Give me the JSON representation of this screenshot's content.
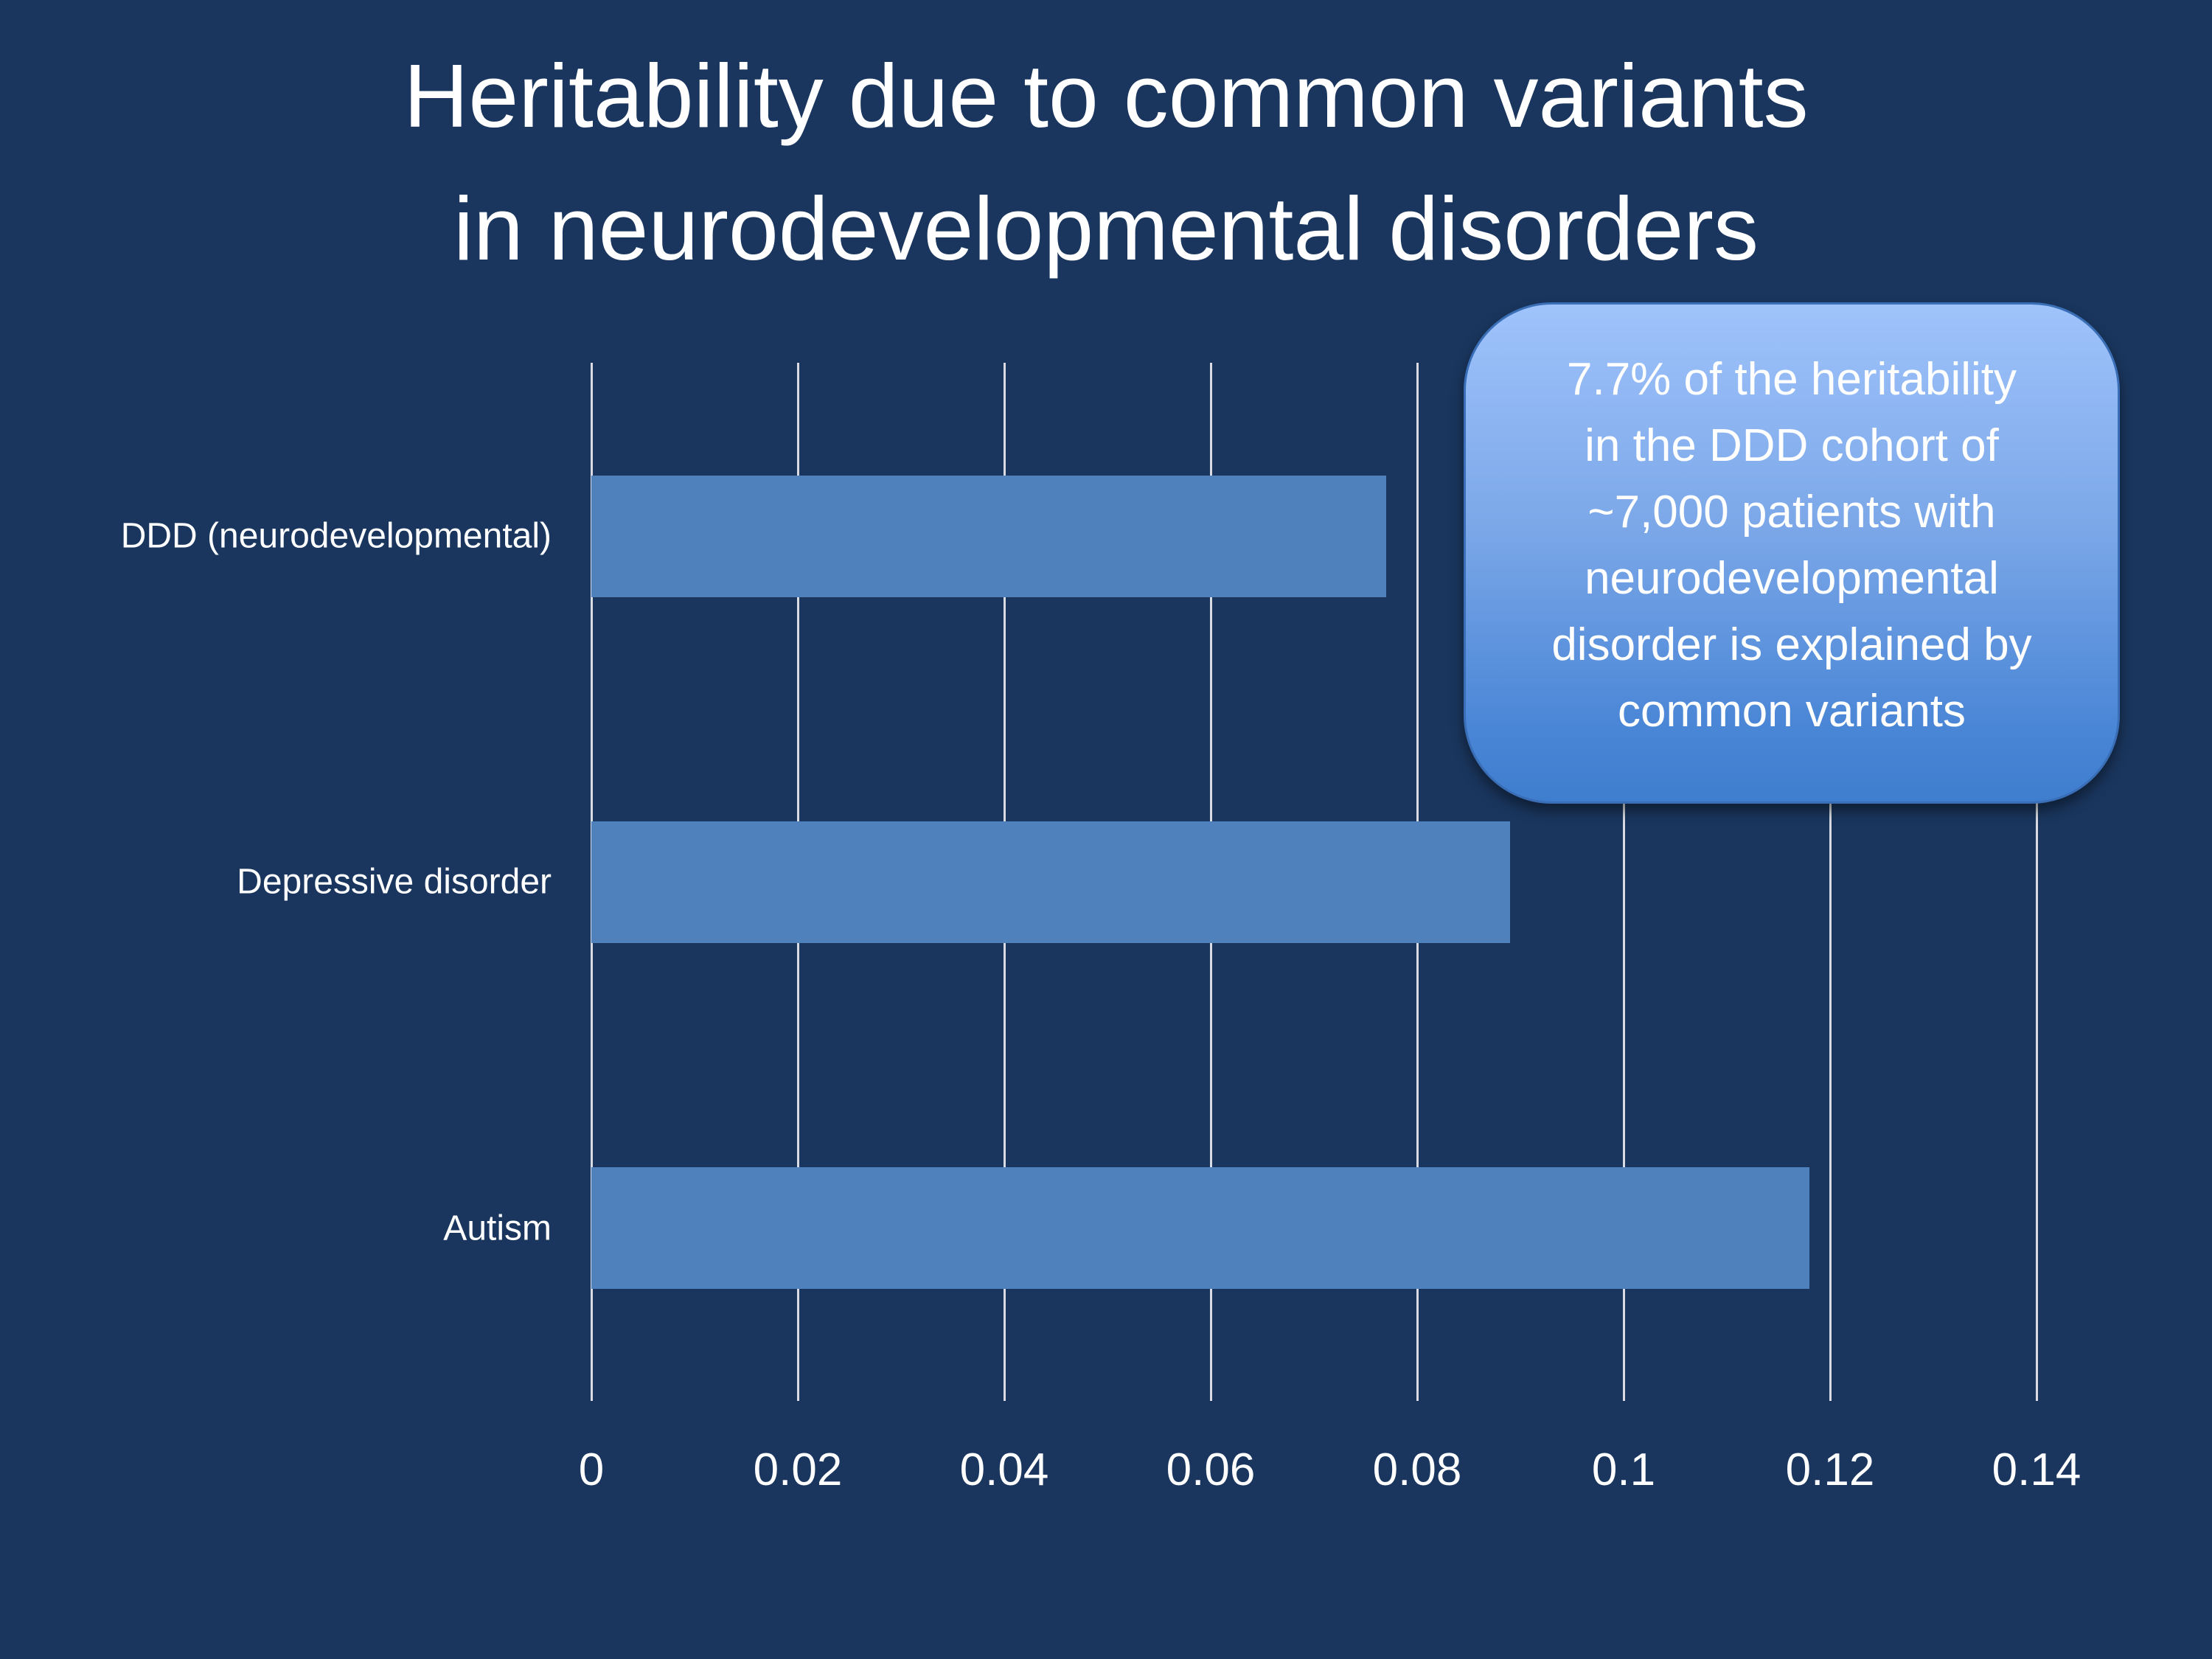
{
  "slide": {
    "background_color": "#1a365e",
    "title_lines": [
      "Heritability due to common variants",
      "in neurodevelopmental disorders"
    ]
  },
  "callout": {
    "lines": [
      "7.7% of the heritability",
      "in the DDD cohort of",
      "~7,000 patients with",
      "neurodevelopmental",
      "disorder is explained by",
      "common variants"
    ],
    "gradient_top": "#9fc3fb",
    "gradient_bottom": "#3f7dce"
  },
  "chart_data": {
    "type": "bar",
    "orientation": "horizontal",
    "title": "Heritability due to common variants in neurodevelopmental disorders",
    "categories": [
      "DDD (neurodevelopmental)",
      "Depressive disorder",
      "Autism"
    ],
    "values": [
      0.077,
      0.089,
      0.118
    ],
    "xlabel": "",
    "ylabel": "",
    "xlim": [
      0,
      0.14
    ],
    "x_ticks": [
      "0",
      "0.02",
      "0.04",
      "0.06",
      "0.08",
      "0.1",
      "0.12",
      "0.14"
    ],
    "grid": true,
    "legend": null,
    "bar_color": "#4f81bd",
    "annotations": [
      "7.7% of the heritability in the DDD cohort of ~7,000 patients with neurodevelopmental disorder is explained by common variants"
    ]
  }
}
